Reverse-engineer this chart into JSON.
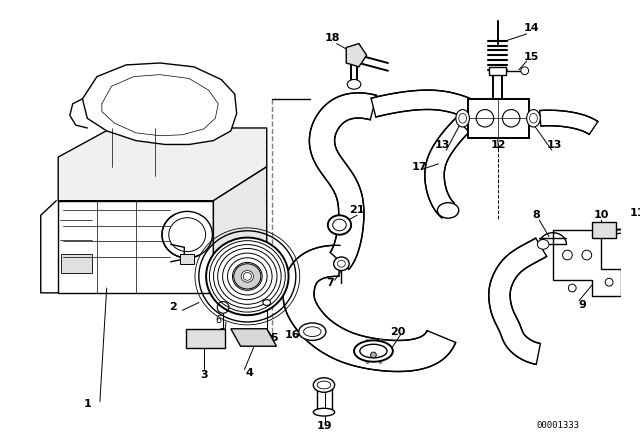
{
  "bg_color": "#ffffff",
  "line_color": "#000000",
  "watermark": "00001333",
  "fig_w": 6.4,
  "fig_h": 4.48,
  "dpi": 100
}
